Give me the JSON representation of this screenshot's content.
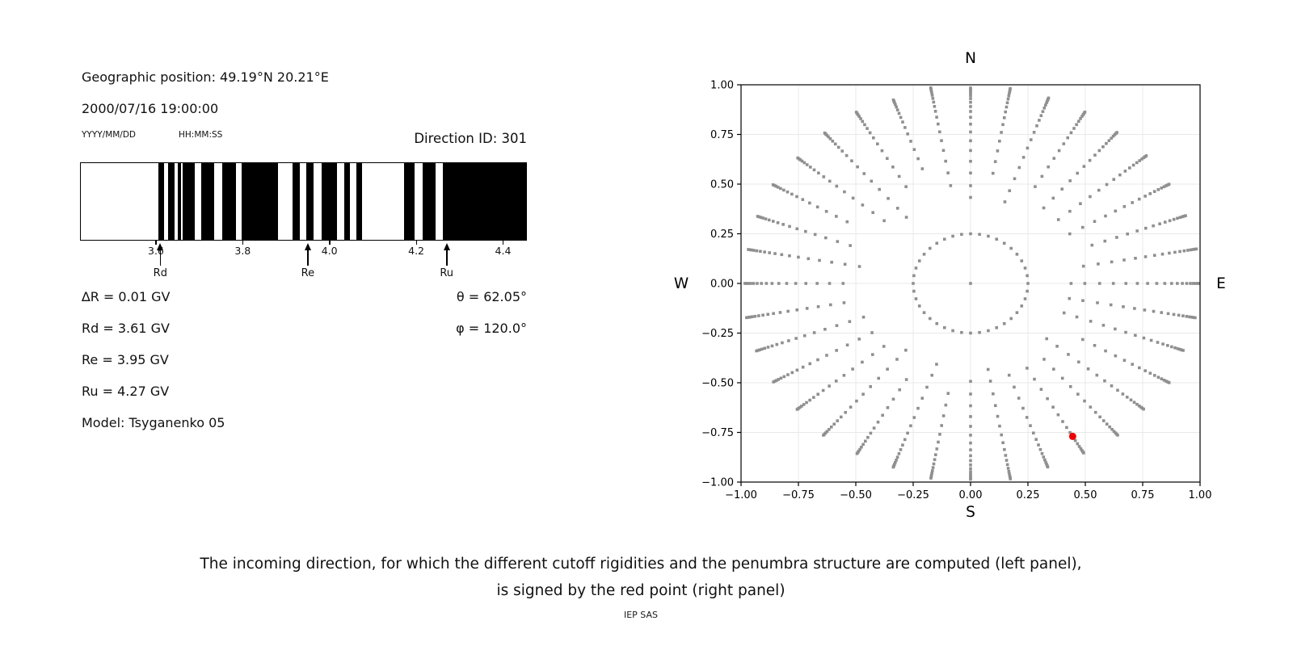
{
  "info": {
    "geographic_position": "Geographic position: 49.19°N 20.21°E",
    "datetime": "2000/07/16 19:00:00",
    "date_format_label": "YYYY/MM/DD",
    "time_format_label": "HH:MM:SS",
    "direction_id": "Direction ID: 301"
  },
  "stats": {
    "delta_r": "∆R = 0.01 GV",
    "rd": "Rd = 3.61 GV",
    "re": "Re = 3.95 GV",
    "ru": "Ru = 4.27 GV",
    "model": "Model: Tsyganenko 05",
    "theta": "θ = 62.05°",
    "phi": "φ = 120.0°"
  },
  "caption": {
    "line1": "The incoming direction, for which the different cutoff rigidities and the penumbra structure are computed (left panel),",
    "line2": "is signed by the red point (right panel)"
  },
  "footer": "IEP SAS",
  "colors": {
    "bar": "#000000",
    "dot_gray": "#8f8f8f",
    "red_point": "#ee0000",
    "grid": "#e9e9e9",
    "spine": "#000000"
  },
  "chart_data": [
    {
      "type": "barcode",
      "name": "penumbra structure (allowed/forbidden rigidity bands)",
      "x_unit": "GV",
      "x_range": [
        3.425,
        4.455
      ],
      "x_ticks": [
        3.6,
        3.8,
        4.0,
        4.2,
        4.4
      ],
      "black_bands_gv": [
        [
          3.604,
          3.618
        ],
        [
          3.626,
          3.641
        ],
        [
          3.649,
          3.656
        ],
        [
          3.661,
          3.689
        ],
        [
          3.703,
          3.733
        ],
        [
          3.753,
          3.783
        ],
        [
          3.797,
          3.881
        ],
        [
          3.914,
          3.931
        ],
        [
          3.947,
          3.964
        ],
        [
          3.982,
          4.017
        ],
        [
          4.035,
          4.047
        ],
        [
          4.063,
          4.075
        ],
        [
          4.172,
          4.197
        ],
        [
          4.215,
          4.246
        ],
        [
          4.262,
          4.455
        ]
      ],
      "arrows": [
        {
          "label": "Rd",
          "value_gv": 3.61
        },
        {
          "label": "Re",
          "value_gv": 3.95
        },
        {
          "label": "Ru",
          "value_gv": 4.27
        }
      ]
    },
    {
      "type": "scatter",
      "name": "asymptotic direction map",
      "xlim": [
        -1,
        1
      ],
      "ylim": [
        -1,
        1
      ],
      "ticks": [
        -1,
        -0.75,
        -0.5,
        -0.25,
        0,
        0.25,
        0.5,
        0.75,
        1
      ],
      "grid": true,
      "compass": {
        "n": "N",
        "e": "E",
        "s": "S",
        "w": "W"
      },
      "spoke_angles_deg": [
        0,
        10,
        20,
        30,
        40,
        50,
        60,
        70,
        80,
        90,
        100,
        110,
        120,
        130,
        140,
        150,
        160,
        170,
        180,
        190,
        200,
        210,
        220,
        230,
        240,
        250,
        260,
        270,
        280,
        290,
        300,
        310,
        320,
        330,
        340,
        350
      ],
      "spoke_radii": [
        1.0,
        0.993,
        0.985,
        0.975,
        0.962,
        0.946,
        0.927,
        0.905,
        0.88,
        0.85,
        0.815,
        0.775,
        0.73,
        0.68,
        0.625,
        0.565,
        0.5,
        0.44
      ],
      "ring": {
        "radius": 0.25,
        "dot_count": 40
      },
      "center_dot": [
        0,
        0
      ],
      "red_point": {
        "x": 0.445,
        "y": -0.77
      }
    }
  ]
}
